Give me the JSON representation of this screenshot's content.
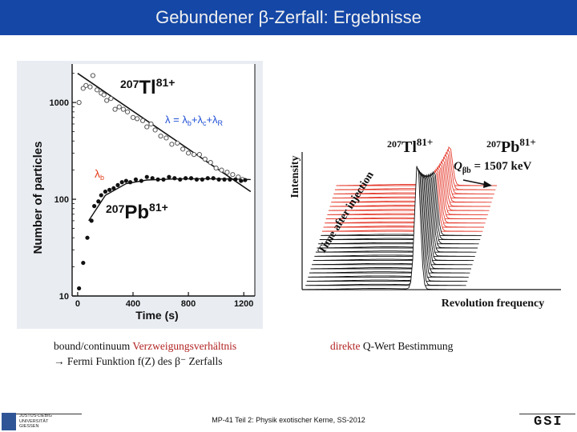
{
  "slide": {
    "title": "Gebundener β-Zerfall: Ergebnisse",
    "footer": "MP-41 Teil 2: Physik exotischer Kerne, SS-2012"
  },
  "captions": {
    "left_line1_prefix": "bound/continuum ",
    "left_line1_accent": "Verzweigungsverhältnis",
    "left_line2": "→ Fermi Funktion f(Z) des β⁻ Zerfalls",
    "right_prefix": "direkte ",
    "right_rest": "Q-Wert Bestimmung"
  },
  "logos": {
    "left_lines": [
      "JUSTUS-LIEBIG",
      "UNIVERSITÄT",
      "GIESSEN"
    ],
    "right_text": "GSI"
  },
  "colors": {
    "title_bar": "#1447a6",
    "title_text": "#f0f0f0",
    "accent_red": "#b22222",
    "chart_bg": "#e9edf2",
    "fit_blue": "#1f4fd6",
    "lambda_red": "#e2401c"
  },
  "chart_data": [
    {
      "type": "scatter",
      "xlabel": "Time (s)",
      "ylabel": "Number of particles",
      "x_ticks": [
        0,
        400,
        800,
        1200
      ],
      "y_ticks": [
        10,
        100,
        1000
      ],
      "y_scale": "log",
      "xlim": [
        -40,
        1280
      ],
      "ylim": [
        10,
        2500
      ],
      "grid": false,
      "annotations": {
        "tl_mass": "207",
        "tl_symbol": "Tl",
        "tl_charge": "81+",
        "pb_mass": "207",
        "pb_symbol": "Pb",
        "pb_charge": "81+",
        "lambda_total": "λ",
        "lambda_equals": " = ",
        "lambda_b": "λ",
        "lambda_b_sub": "b",
        "plus1": "+",
        "lambda_c": "λ",
        "lambda_c_sub": "c",
        "plus2": "+",
        "lambda_r": "λ",
        "lambda_r_sub": "R",
        "lambda_b_red": "λ",
        "lambda_b_red_sub": "b"
      },
      "series": [
        {
          "name": "Tl",
          "marker": "open-circle",
          "x": [
            10,
            40,
            60,
            90,
            110,
            140,
            170,
            190,
            210,
            240,
            270,
            300,
            330,
            360,
            400,
            430,
            470,
            500,
            530,
            560,
            600,
            640,
            680,
            720,
            760,
            800,
            840,
            880,
            920,
            960,
            1000,
            1040,
            1080,
            1120,
            1160,
            1190
          ],
          "y": [
            1000,
            1400,
            1500,
            1450,
            1900,
            1350,
            1250,
            1200,
            1050,
            1100,
            850,
            900,
            850,
            800,
            700,
            680,
            650,
            560,
            600,
            520,
            450,
            430,
            370,
            380,
            330,
            300,
            290,
            290,
            260,
            240,
            210,
            200,
            190,
            180,
            170,
            160
          ]
        },
        {
          "name": "Pb",
          "marker": "filled-circle",
          "x": [
            10,
            40,
            70,
            100,
            120,
            150,
            170,
            200,
            230,
            260,
            290,
            320,
            350,
            380,
            420,
            460,
            500,
            540,
            580,
            620,
            660,
            700,
            740,
            780,
            820,
            860,
            900,
            940,
            980,
            1020,
            1060,
            1100,
            1140,
            1180,
            1210
          ],
          "y": [
            12,
            22,
            40,
            60,
            85,
            95,
            110,
            120,
            125,
            130,
            140,
            150,
            155,
            150,
            160,
            155,
            170,
            165,
            160,
            160,
            170,
            165,
            160,
            165,
            165,
            160,
            160,
            165,
            165,
            160,
            160,
            160,
            160,
            155,
            158
          ]
        },
        {
          "name": "λ = λb+λc+λR",
          "type": "line",
          "x": [
            0,
            1250
          ],
          "y": [
            2000,
            120
          ]
        },
        {
          "name": "λb",
          "type": "line",
          "x": [
            80,
            200,
            350,
            500,
            700,
            900,
            1100,
            1250
          ],
          "y": [
            60,
            110,
            145,
            158,
            162,
            163,
            162,
            160
          ]
        }
      ]
    },
    {
      "type": "line",
      "subtype": "waterfall",
      "xlabel": "Revolution frequency",
      "ylabel": "Intensity",
      "zlabel": "Time after injection",
      "annotations": {
        "tl_mass": "207",
        "tl_symbol": "Tl",
        "tl_charge": "81+",
        "pb_mass": "207",
        "pb_symbol": "Pb",
        "pb_charge": "81+",
        "q_symbol": "Q",
        "q_sub": "βb",
        "q_equals": " = 1507 keV"
      },
      "trace_count": 26,
      "red_trace_count": 12,
      "colors": {
        "early": "#e53c2f",
        "late": "#111111"
      }
    }
  ]
}
